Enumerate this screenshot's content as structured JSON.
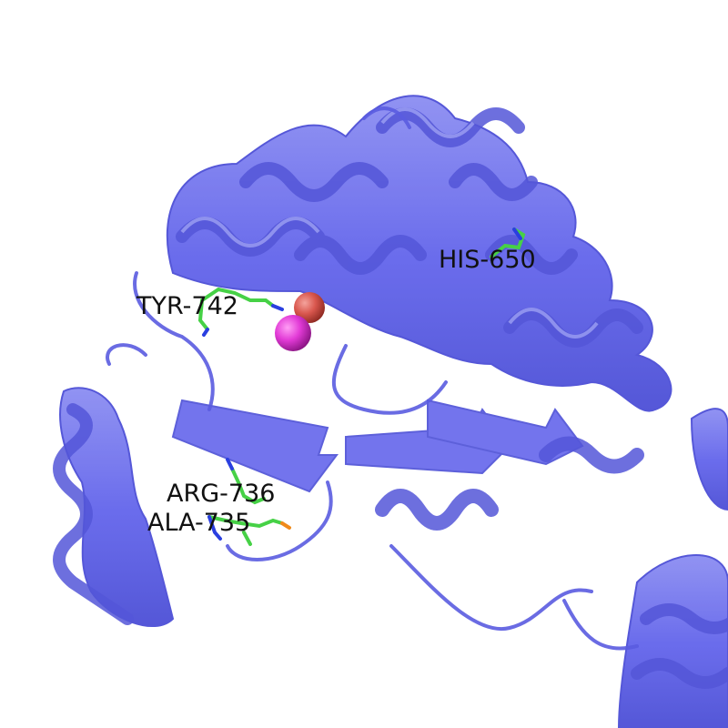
{
  "colors": {
    "background": "#ffffff",
    "cartoon": "#6466ec",
    "cartoon_dark": "#4c4fd6",
    "cartoon_light": "#8c8ef2",
    "stick_carbon": "#46d146",
    "stick_nitrogen": "#2a3fe0",
    "stick_oxygen": "#f08a1a",
    "ion_magenta": "#e23ad6",
    "ion_salmon": "#d9574e",
    "label_text": "#111111"
  },
  "residue_labels": [
    {
      "id": "his650",
      "text": "HIS-650"
    },
    {
      "id": "tyr742",
      "text": "TYR-742"
    },
    {
      "id": "arg736",
      "text": "ARG-736"
    },
    {
      "id": "ala735",
      "text": "ALA-735"
    }
  ],
  "labels": {
    "his650": "HIS-650",
    "tyr742": "TYR-742",
    "arg736": "ARG-736",
    "ala735": "ALA-735"
  }
}
